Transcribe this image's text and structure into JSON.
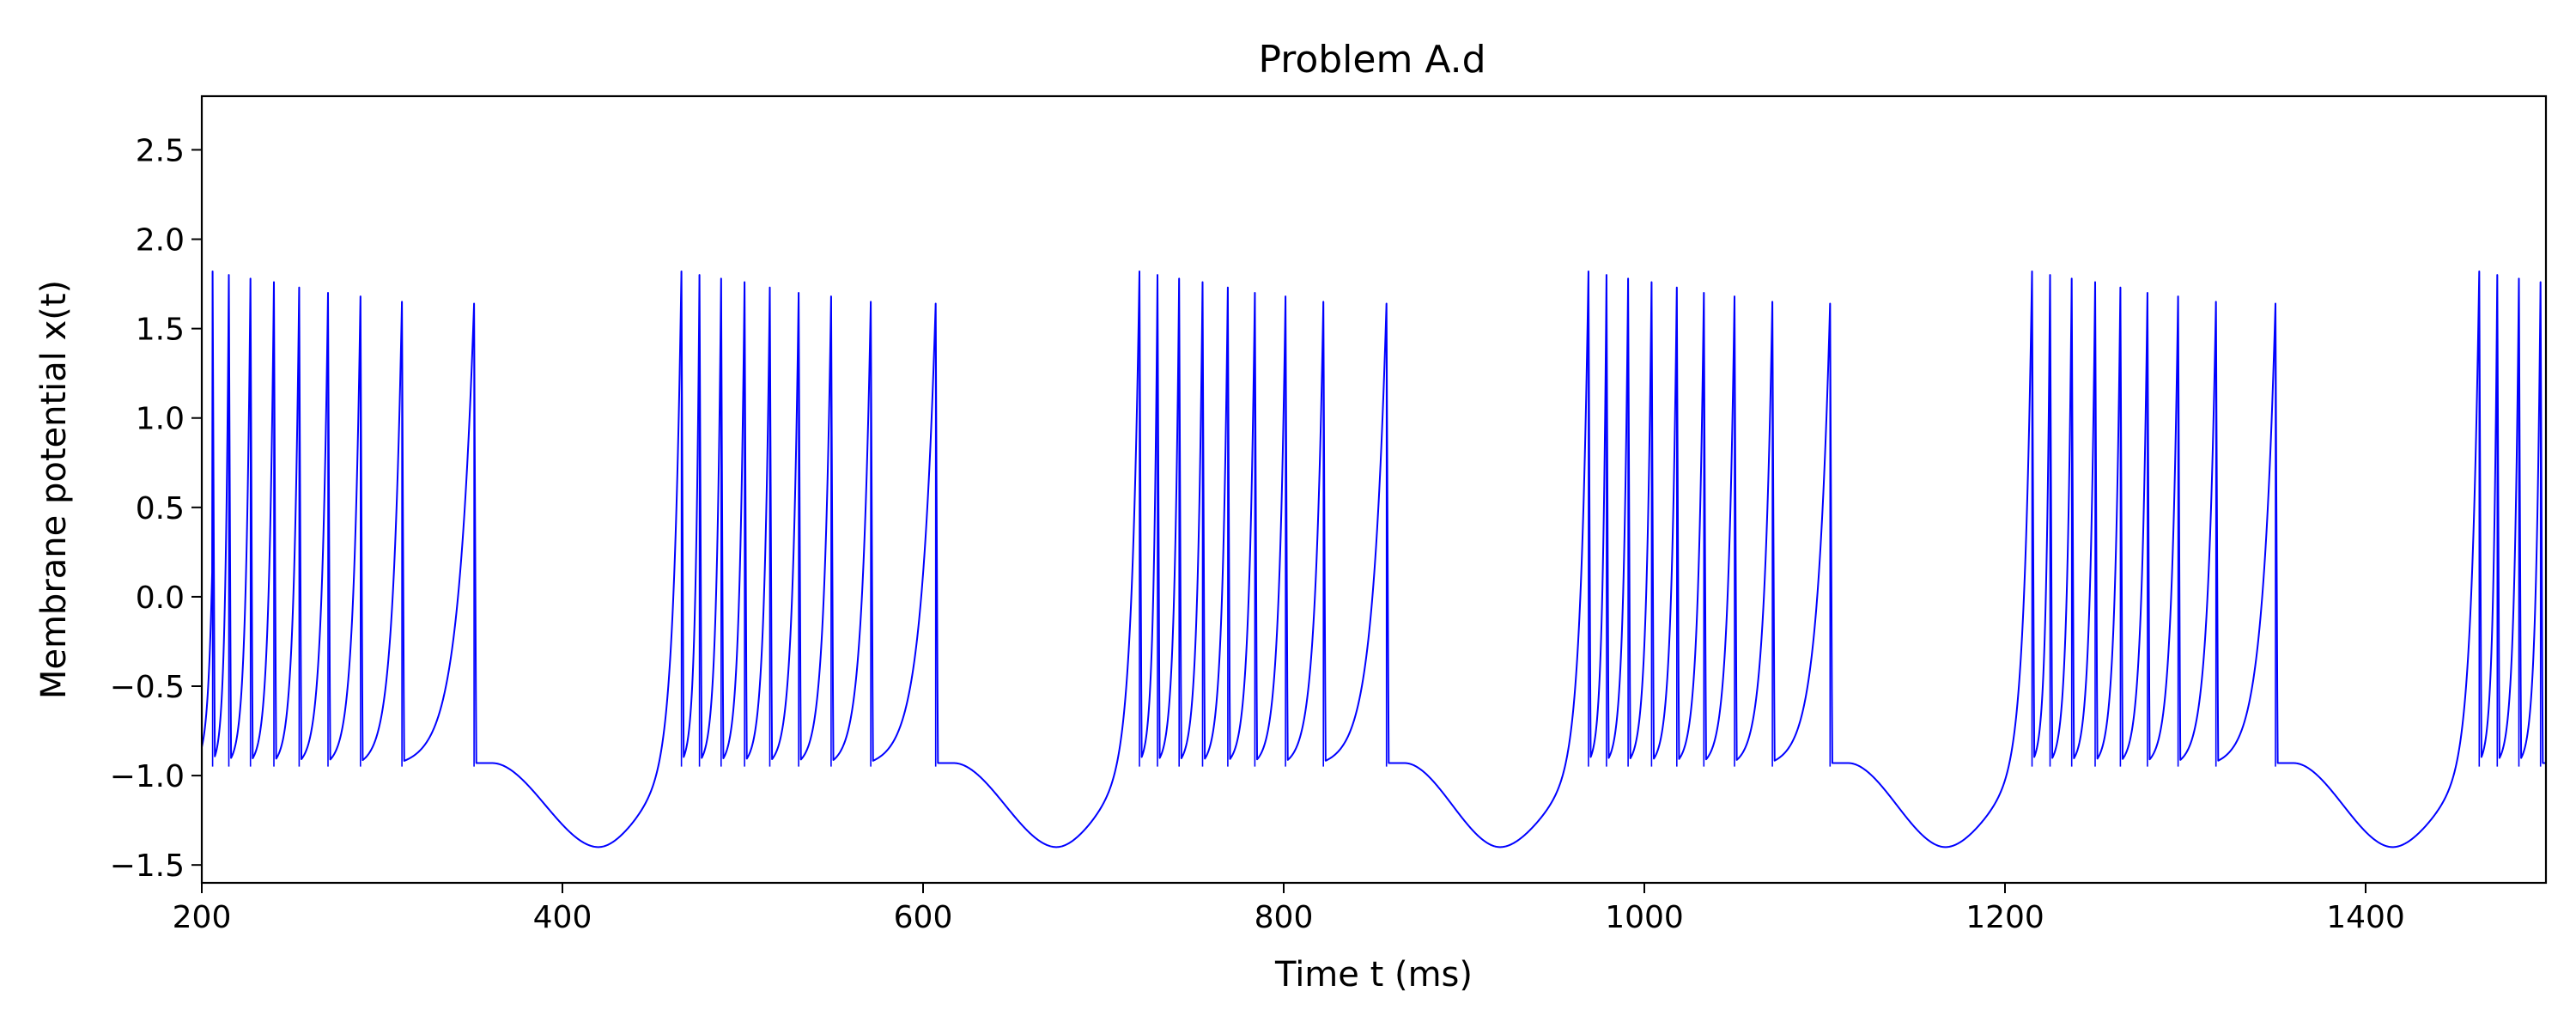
{
  "chart_data": {
    "type": "line",
    "title": "Problem A.d",
    "xlabel": "Time t (ms)",
    "ylabel": "Membrane potential x(t)",
    "xlim": [
      200,
      1500
    ],
    "ylim": [
      -1.6,
      2.8
    ],
    "xticks": [
      {
        "value": 200,
        "label": "200"
      },
      {
        "value": 400,
        "label": "400"
      },
      {
        "value": 600,
        "label": "600"
      },
      {
        "value": 800,
        "label": "800"
      },
      {
        "value": 1000,
        "label": "1000"
      },
      {
        "value": 1200,
        "label": "1200"
      },
      {
        "value": 1400,
        "label": "1400"
      }
    ],
    "yticks": [
      {
        "value": -1.5,
        "label": "−1.5"
      },
      {
        "value": -1.0,
        "label": "−1.0"
      },
      {
        "value": -0.5,
        "label": "−0.5"
      },
      {
        "value": 0.0,
        "label": "0.0"
      },
      {
        "value": 0.5,
        "label": "0.5"
      },
      {
        "value": 1.0,
        "label": "1.0"
      },
      {
        "value": 1.5,
        "label": "1.5"
      },
      {
        "value": 2.0,
        "label": "2.0"
      },
      {
        "value": 2.5,
        "label": "2.5"
      }
    ],
    "grid": false,
    "legend": "none",
    "line_color": "#0000ff",
    "series": [
      {
        "spike_peak": 1.8,
        "spike_trough": -0.95,
        "post_burst_plateau": -0.93,
        "hyperpolarization_min": -1.4,
        "bursts": [
          {
            "spike_times": [
              206,
              215,
              227,
              240,
              254,
              270,
              288,
              311,
              351
            ],
            "spike_peaks": [
              1.82,
              1.8,
              1.78,
              1.76,
              1.73,
              1.7,
              1.68,
              1.65,
              1.64
            ]
          },
          {
            "spike_times": [
              466,
              476,
              488,
              501,
              515,
              531,
              549,
              571,
              607
            ],
            "spike_peaks": [
              1.82,
              1.8,
              1.78,
              1.76,
              1.73,
              1.7,
              1.68,
              1.65,
              1.64
            ]
          },
          {
            "spike_times": [
              720,
              730,
              742,
              755,
              769,
              784,
              801,
              822,
              857
            ],
            "spike_peaks": [
              1.82,
              1.8,
              1.78,
              1.76,
              1.73,
              1.7,
              1.68,
              1.65,
              1.64
            ]
          },
          {
            "spike_times": [
              969,
              979,
              991,
              1004,
              1018,
              1033,
              1050,
              1071,
              1103
            ],
            "spike_peaks": [
              1.82,
              1.8,
              1.78,
              1.76,
              1.73,
              1.7,
              1.68,
              1.65,
              1.64
            ]
          },
          {
            "spike_times": [
              1215,
              1225,
              1237,
              1250,
              1264,
              1279,
              1296,
              1317,
              1350
            ],
            "spike_peaks": [
              1.82,
              1.8,
              1.78,
              1.76,
              1.73,
              1.7,
              1.68,
              1.65,
              1.64
            ]
          },
          {
            "spike_times": [
              1463,
              1473,
              1485,
              1497
            ],
            "spike_peaks": [
              1.82,
              1.8,
              1.78,
              1.76
            ]
          }
        ],
        "hyperpolarization_minima_times": [
          420,
          674,
          920,
          1167,
          1415
        ]
      }
    ]
  }
}
